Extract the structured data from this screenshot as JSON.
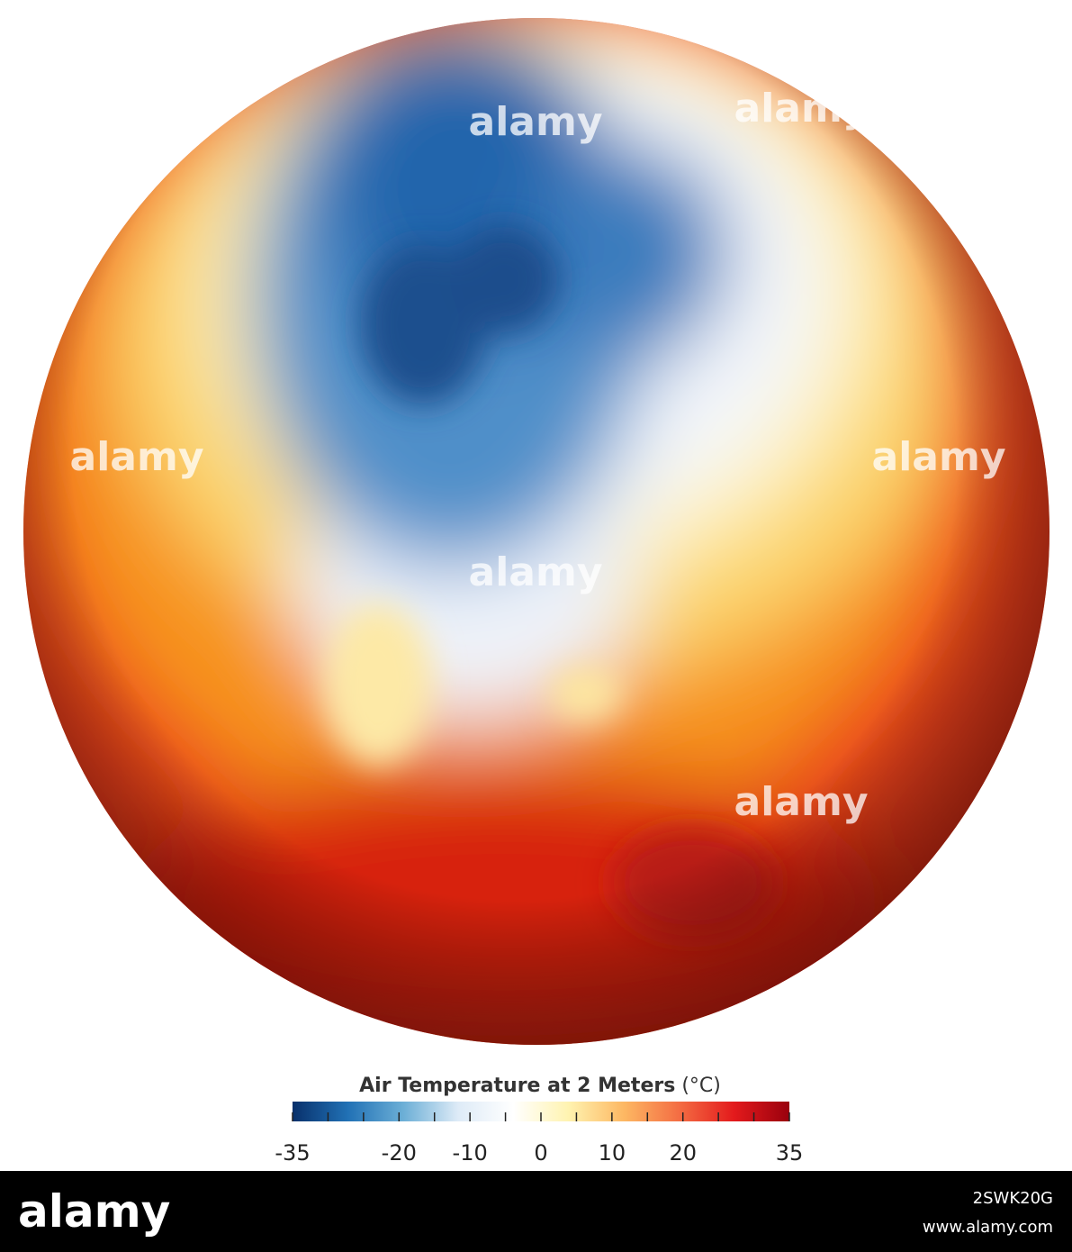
{
  "colorbar": {
    "title": "Air Temperature at 2 Meters",
    "unit": "(°C)",
    "lim": [
      -35,
      35
    ],
    "ticks": [
      -35,
      -20,
      -10,
      0,
      10,
      20,
      35
    ],
    "minor_ticks": [
      -30,
      -25,
      -15,
      -5,
      5,
      15,
      25,
      30
    ],
    "colors": [
      "#08306b",
      "#2171b5",
      "#6baed6",
      "#deebf7",
      "#ffffff",
      "#fff3b0",
      "#fdb863",
      "#f46d43",
      "#e31a1c",
      "#99000d"
    ]
  },
  "watermark": "alamy",
  "footer": {
    "brand": "alamy",
    "image_id": "2SWK20G",
    "url": "www.alamy.com"
  }
}
